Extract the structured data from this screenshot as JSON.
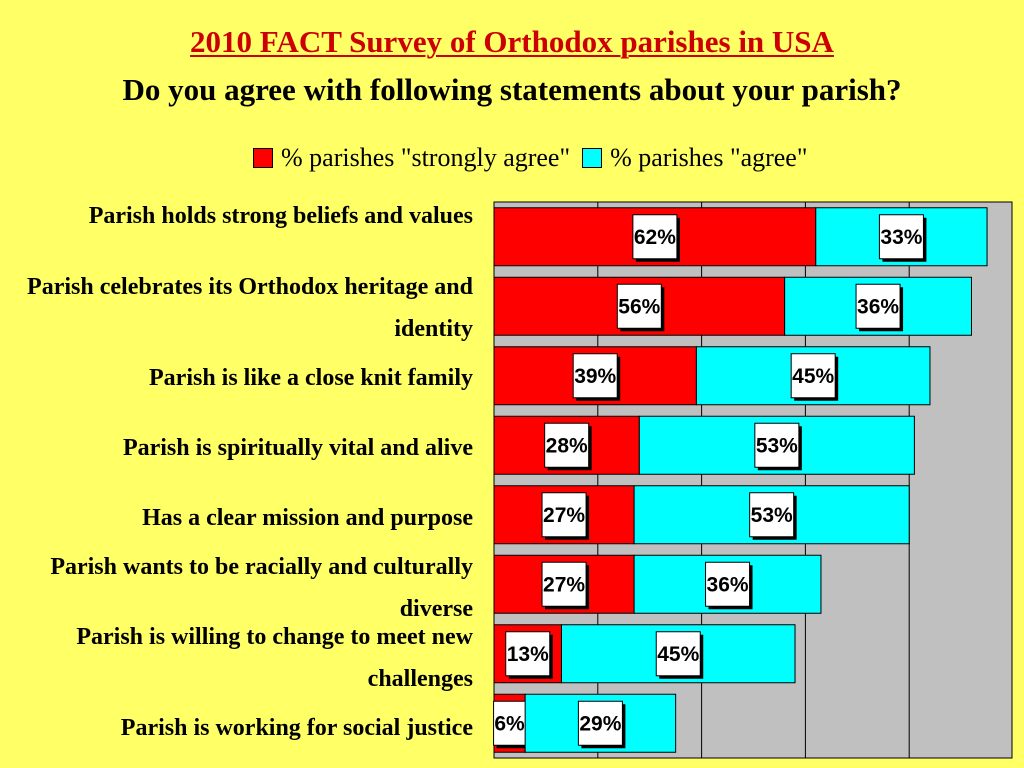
{
  "title": "2010 FACT Survey of Orthodox parishes in USA",
  "subtitle": "Do you agree with following statements about your parish?",
  "colors": {
    "background": "#ffff66",
    "strongly_agree": "#ff0000",
    "agree": "#00ffff",
    "plot_area": "#c0c0c0",
    "title": "#cc0000"
  },
  "chart_data": {
    "type": "bar",
    "orientation": "horizontal",
    "stacked": true,
    "title": "2010 FACT Survey of Orthodox parishes in USA",
    "subtitle": "Do you agree with following statements about your parish?",
    "categories": [
      "Parish holds strong beliefs and values",
      "Parish celebrates its Orthodox heritage and identity",
      "Parish is like a close knit family",
      "Parish is spiritually vital and alive",
      "Has a clear mission and purpose",
      "Parish wants to be racially and culturally diverse",
      "Parish is willing to change to meet new challenges",
      "Parish is working for social justice"
    ],
    "series": [
      {
        "name": "% parishes \"strongly agree\"",
        "color": "#ff0000",
        "values": [
          62,
          56,
          39,
          28,
          27,
          27,
          13,
          6
        ],
        "labels": [
          "62%",
          "56%",
          "39%",
          "28%",
          "27%",
          "27%",
          "13%",
          "6%"
        ]
      },
      {
        "name": "% parishes \"agree\"",
        "color": "#00ffff",
        "values": [
          33,
          36,
          45,
          53,
          53,
          36,
          45,
          29
        ],
        "labels": [
          "33%",
          "36%",
          "45%",
          "53%",
          "53%",
          "36%",
          "45%",
          "29%"
        ]
      }
    ],
    "xlim": [
      0,
      100
    ],
    "grid": true,
    "legend_position": "top-right"
  }
}
